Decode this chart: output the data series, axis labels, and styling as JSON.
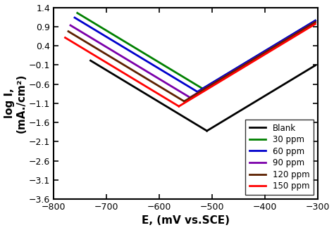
{
  "title": "",
  "xlabel": "E, (mV vs.SCE)",
  "ylabel": "log I,\n(mA./cm²)",
  "xlim": [
    -800,
    -300
  ],
  "ylim": [
    -3.6,
    1.4
  ],
  "xticks": [
    -800,
    -700,
    -600,
    -500,
    -400,
    -300
  ],
  "yticks": [
    -3.6,
    -3.1,
    -2.6,
    -2.1,
    -1.6,
    -1.1,
    -0.6,
    -0.1,
    0.4,
    0.9,
    1.4
  ],
  "series": [
    {
      "label": "Blank",
      "color": "#000000",
      "corr_pot": -510,
      "corr_cur": -1.82,
      "ba": 120,
      "bc": 120,
      "anodic_end_E": -305,
      "cathodic_end_E": -730
    },
    {
      "label": "30 ppm",
      "color": "#008000",
      "corr_pot": -518,
      "corr_cur": -0.72,
      "ba": 120,
      "bc": 120,
      "anodic_end_E": -305,
      "cathodic_end_E": -755
    },
    {
      "label": "60 ppm",
      "color": "#0000cc",
      "corr_pot": -528,
      "corr_cur": -0.8,
      "ba": 120,
      "bc": 120,
      "anodic_end_E": -305,
      "cathodic_end_E": -760
    },
    {
      "label": "90 ppm",
      "color": "#7B00AA",
      "corr_pot": -542,
      "corr_cur": -0.95,
      "ba": 120,
      "bc": 120,
      "anodic_end_E": -305,
      "cathodic_end_E": -768
    },
    {
      "label": "120 ppm",
      "color": "#5C2000",
      "corr_pot": -553,
      "corr_cur": -1.05,
      "ba": 120,
      "bc": 120,
      "anodic_end_E": -305,
      "cathodic_end_E": -772
    },
    {
      "label": "150 ppm",
      "color": "#FF0000",
      "corr_pot": -563,
      "corr_cur": -1.18,
      "ba": 120,
      "bc": 120,
      "anodic_end_E": -305,
      "cathodic_end_E": -778
    }
  ],
  "background_color": "#ffffff",
  "linewidth": 2.0,
  "legend_fontsize": 8.5,
  "axis_fontsize": 11,
  "tick_fontsize": 9
}
